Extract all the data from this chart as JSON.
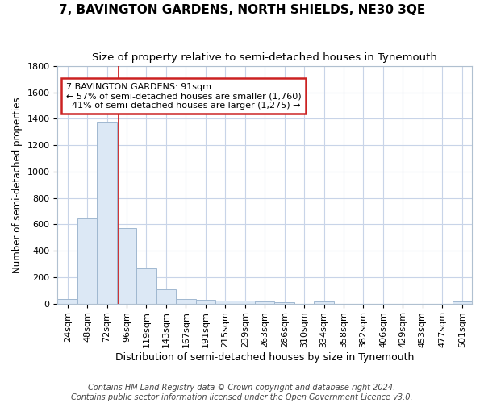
{
  "title1": "7, BAVINGTON GARDENS, NORTH SHIELDS, NE30 3QE",
  "title2": "Size of property relative to semi-detached houses in Tynemouth",
  "xlabel": "Distribution of semi-detached houses by size in Tynemouth",
  "ylabel": "Number of semi-detached properties",
  "footnote": "Contains HM Land Registry data © Crown copyright and database right 2024.\nContains public sector information licensed under the Open Government Licence v3.0.",
  "categories": [
    "24sqm",
    "48sqm",
    "72sqm",
    "96sqm",
    "119sqm",
    "143sqm",
    "167sqm",
    "191sqm",
    "215sqm",
    "239sqm",
    "263sqm",
    "286sqm",
    "310sqm",
    "334sqm",
    "358sqm",
    "382sqm",
    "406sqm",
    "429sqm",
    "453sqm",
    "477sqm",
    "501sqm"
  ],
  "values": [
    35,
    645,
    1380,
    570,
    265,
    105,
    35,
    30,
    25,
    20,
    15,
    12,
    0,
    15,
    0,
    0,
    0,
    0,
    0,
    0,
    15
  ],
  "bar_color": "#dce8f5",
  "bar_edge_color": "#a0b8d0",
  "red_line_label": "7 BAVINGTON GARDENS: 91sqm",
  "pct_smaller": 57,
  "n_smaller": 1760,
  "pct_larger": 41,
  "n_larger": 1275,
  "annotation_box_color": "#ffffff",
  "annotation_box_edge_color": "#cc2222",
  "ylim": [
    0,
    1800
  ],
  "yticks": [
    0,
    200,
    400,
    600,
    800,
    1000,
    1200,
    1400,
    1600,
    1800
  ],
  "grid_color": "#c8d4e8",
  "background_color": "#ffffff",
  "title1_fontsize": 11,
  "title2_fontsize": 9.5,
  "xlabel_fontsize": 9,
  "ylabel_fontsize": 8.5,
  "tick_fontsize": 8,
  "annot_fontsize": 8,
  "footnote_fontsize": 7
}
